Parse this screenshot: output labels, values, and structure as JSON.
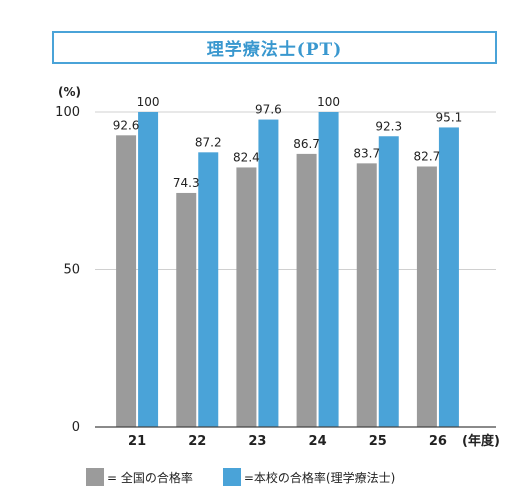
{
  "chart_data": {
    "type": "bar",
    "title": "理学療法士(PT)",
    "ylabel": "(%)",
    "xunit": "(年度)",
    "categories": [
      "21",
      "22",
      "23",
      "24",
      "25",
      "26"
    ],
    "series": [
      {
        "name": "= 全国の合格率",
        "values": [
          92.6,
          74.3,
          82.4,
          86.7,
          83.7,
          82.7
        ],
        "labels": [
          "92.6",
          "74.3",
          "82.4",
          "86.7",
          "83.7",
          "82.7"
        ],
        "color": "#9b9b9b"
      },
      {
        "name": "=本校の合格率(理学療法士)",
        "values": [
          100,
          87.2,
          97.6,
          100,
          92.3,
          95.1
        ],
        "labels": [
          "100",
          "87.2",
          "97.6",
          "100",
          "92.3",
          "95.1"
        ],
        "color": "#4aa3d8"
      }
    ],
    "yticks": [
      "0",
      "50",
      "100"
    ],
    "ylim": [
      0,
      100
    ],
    "grid": true
  }
}
